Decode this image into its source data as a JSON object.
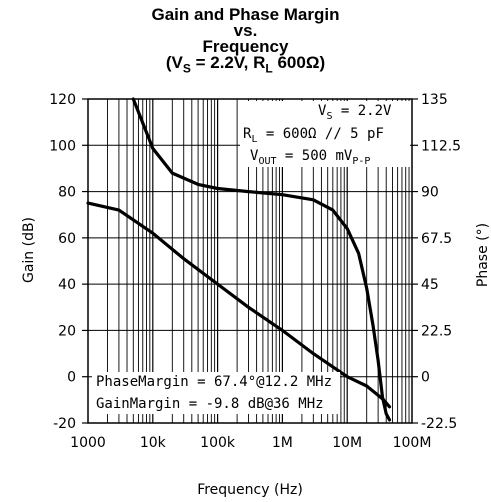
{
  "chart_data": {
    "type": "line",
    "title": {
      "line1": "Gain and Phase Margin",
      "line2": "vs.",
      "line3": "Frequency",
      "line4_main": "(V",
      "line4_sub1": "S",
      "line4_mid": " = 2.2V, R",
      "line4_sub2": "L",
      "line4_end": " 600Ω)"
    },
    "xlabel": "Frequency (Hz)",
    "ylabel_left": "Gain (dB)",
    "ylabel_right": "Phase (°)",
    "x_scale": "log",
    "xlim": [
      1000,
      100000000
    ],
    "x_ticks": [
      1000,
      10000,
      100000,
      1000000,
      10000000,
      100000000
    ],
    "x_tick_labels": [
      "1000",
      "10k",
      "100k",
      "1M",
      "10M",
      "100M"
    ],
    "ylim_left": [
      -20,
      120
    ],
    "y_ticks_left": [
      -20,
      0,
      20,
      40,
      60,
      80,
      100,
      120
    ],
    "y_tick_labels_left": [
      "-20",
      "0",
      "20",
      "40",
      "60",
      "80",
      "100",
      "120"
    ],
    "ylim_right": [
      -22.5,
      135
    ],
    "y_ticks_right": [
      -22.5,
      0,
      22.5,
      45,
      67.5,
      90,
      112.5,
      135
    ],
    "y_tick_labels_right": [
      "-22.5",
      "0",
      "22.5",
      "45",
      "67.5",
      "90",
      "112.5",
      "135"
    ],
    "grid": true,
    "series": [
      {
        "axis": "left",
        "color": "#000000",
        "x": [
          1000,
          3000,
          10000,
          30000,
          100000,
          300000,
          1000000,
          3000000,
          10000000,
          20000000,
          36000000,
          45000000
        ],
        "y": [
          75,
          72,
          62,
          51,
          40,
          30,
          20,
          10,
          0,
          -4,
          -9.8,
          -13
        ]
      },
      {
        "axis": "right",
        "color": "#000000",
        "x": [
          5000,
          10000,
          20000,
          50000,
          100000,
          300000,
          1000000,
          3000000,
          6000000,
          10000000,
          15000000,
          20000000,
          25000000,
          30000000,
          35000000,
          40000000,
          45000000
        ],
        "y": [
          135,
          111,
          99,
          93.5,
          91.5,
          90,
          88.5,
          86,
          81,
          72,
          60,
          43,
          25,
          8,
          -10,
          -18,
          -21
        ]
      }
    ],
    "annotations": {
      "cond1_pre": "V",
      "cond1_sub": "S",
      "cond1_post": " = 2.2V",
      "cond2_pre": "R",
      "cond2_sub": "L",
      "cond2_post": " = 600Ω // 5 pF",
      "cond3_pre": "V",
      "cond3_sub": "OUT",
      "cond3_post": " = 500 mV",
      "cond3_sub2": "P-P",
      "phase_margin": "PhaseMargin = 67.4°@12.2 MHz",
      "gain_margin": "GainMargin = -9.8 dB@36 MHz"
    }
  }
}
